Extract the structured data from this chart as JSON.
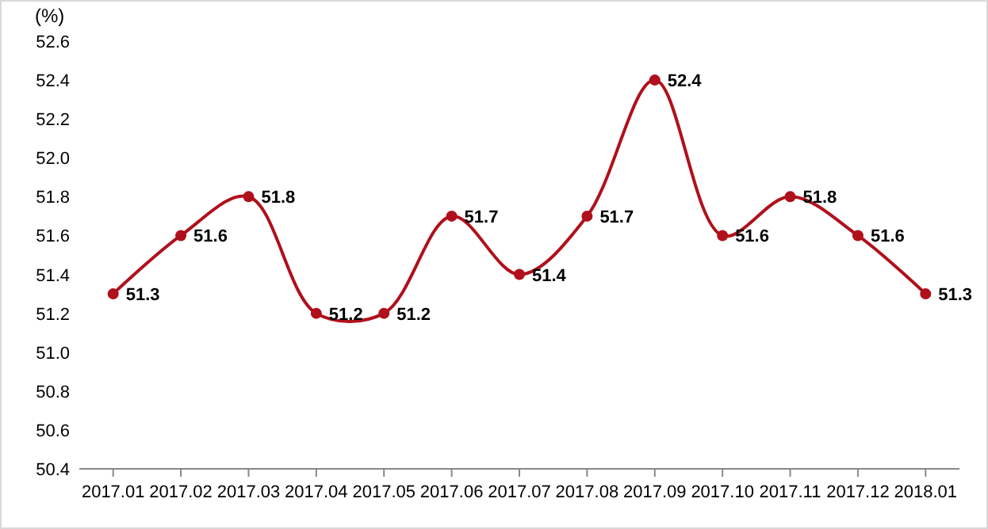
{
  "chart_data": {
    "type": "line",
    "ylabel": "(%)",
    "categories": [
      "2017.01",
      "2017.02",
      "2017.03",
      "2017.04",
      "2017.05",
      "2017.06",
      "2017.07",
      "2017.08",
      "2017.09",
      "2017.10",
      "2017.11",
      "2017.12",
      "2018.01"
    ],
    "series": [
      {
        "color": "#b0101c",
        "values": [
          51.3,
          51.6,
          51.8,
          51.2,
          51.2,
          51.7,
          51.4,
          51.7,
          52.4,
          51.6,
          51.8,
          51.6,
          51.3
        ]
      }
    ],
    "ylim": [
      50.4,
      52.6
    ],
    "yticks": [
      50.4,
      50.6,
      50.8,
      {
        "value": 51,
        "label": "51.0"
      },
      51.2,
      51.4,
      51.6,
      51.8,
      {
        "value": 52,
        "label": "52.0"
      },
      52.2,
      52.4,
      52.6
    ],
    "data_labels": true,
    "marker": "circle",
    "line_style": "solid",
    "grid": false
  }
}
